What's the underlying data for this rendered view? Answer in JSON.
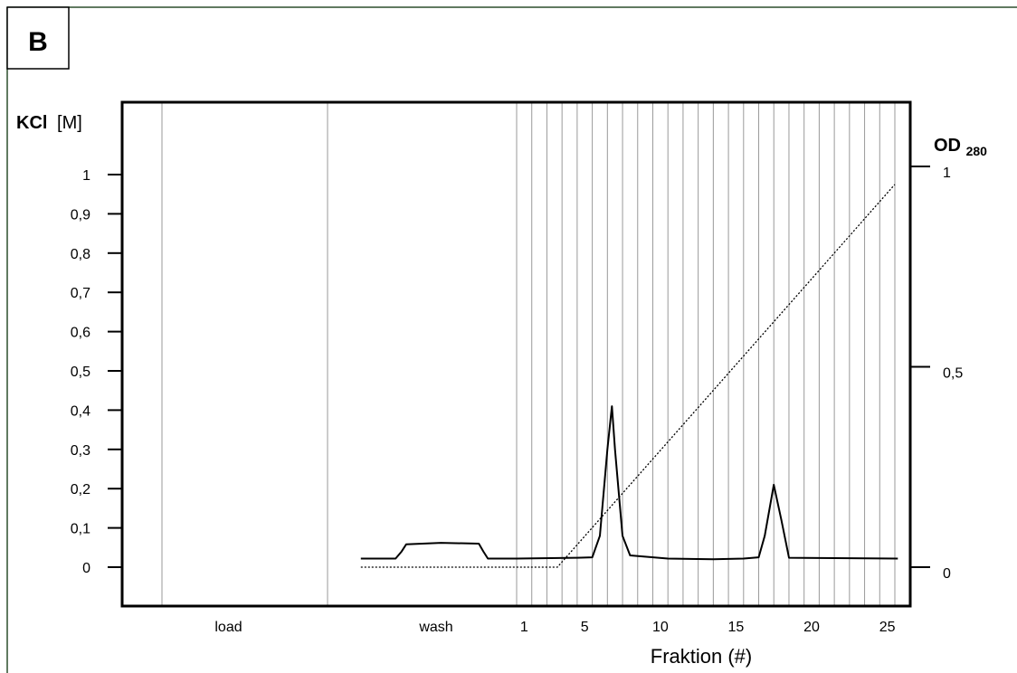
{
  "panel_label": "B",
  "chart_data": {
    "type": "line",
    "title": "",
    "left_axis": {
      "label_bold": "KCl",
      "label_unit": "[M]",
      "ylim": [
        0,
        1.0
      ],
      "ticks": [
        "0",
        "0,1",
        "0,2",
        "0,3",
        "0,4",
        "0,5",
        "0,6",
        "0,7",
        "0,8",
        "0,9",
        "1"
      ]
    },
    "right_axis": {
      "label_main": "OD",
      "label_sub": "280",
      "ylim": [
        0,
        1.0
      ],
      "ticks": [
        "0",
        "0,5",
        "1"
      ]
    },
    "xlabel": "Fraktion (#)",
    "x_segments": [
      "load",
      "wash"
    ],
    "x_ticks": [
      "1",
      "5",
      "10",
      "15",
      "20",
      "25"
    ],
    "fractions": 25,
    "grid": "vertical fraction dividers",
    "series": [
      {
        "style": "solid",
        "points": [
          [
            -10.3,
            0.022
          ],
          [
            -8.0,
            0.022
          ],
          [
            -7.6,
            0.04
          ],
          [
            -7.3,
            0.058
          ],
          [
            -5.0,
            0.062
          ],
          [
            -2.5,
            0.06
          ],
          [
            -2.2,
            0.04
          ],
          [
            -1.9,
            0.022
          ],
          [
            0.0,
            0.022
          ],
          [
            4.0,
            0.024
          ],
          [
            5.0,
            0.025
          ],
          [
            5.5,
            0.08
          ],
          [
            6.0,
            0.3
          ],
          [
            6.3,
            0.41
          ],
          [
            6.5,
            0.3
          ],
          [
            7.0,
            0.08
          ],
          [
            7.5,
            0.03
          ],
          [
            10.0,
            0.022
          ],
          [
            13.0,
            0.02
          ],
          [
            15.0,
            0.022
          ],
          [
            16.0,
            0.025
          ],
          [
            16.4,
            0.08
          ],
          [
            17.0,
            0.21
          ],
          [
            17.5,
            0.12
          ],
          [
            18.0,
            0.024
          ],
          [
            25.2,
            0.022
          ]
        ]
      },
      {
        "style": "dotted",
        "points": [
          [
            -10.3,
            0.0
          ],
          [
            2.7,
            0.0
          ],
          [
            25.0,
            0.955
          ]
        ]
      }
    ]
  }
}
